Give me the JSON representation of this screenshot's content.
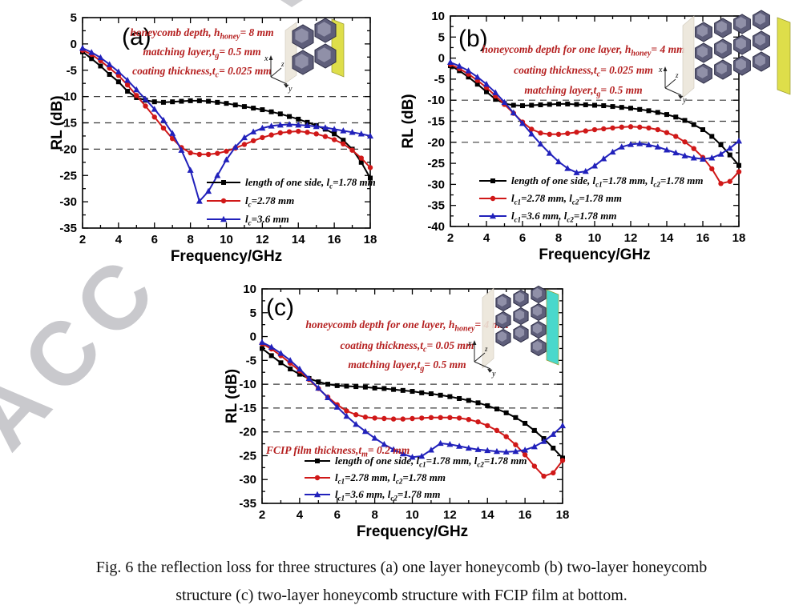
{
  "watermark": {
    "text": "ACC",
    "color": "#c9c9cd"
  },
  "caption": {
    "line1": "Fig. 6 the reflection loss for three structures (a) one layer honeycomb (b) two-layer honeycomb",
    "line2": "structure (c) two-layer honeycomb structure with FCIP film at bottom."
  },
  "colors": {
    "series_black": "#000000",
    "series_red": "#d01818",
    "series_blue": "#2121bb",
    "annotation_red": "#b52020",
    "dashed_line": "#3c3c3c",
    "axis": "#000000",
    "inset_back_yellow": "#dede4a",
    "inset_back_cyan": "#49d8cc"
  },
  "chart_common": {
    "x": [
      2,
      2.5,
      3,
      3.5,
      4,
      4.5,
      5,
      5.5,
      6,
      6.5,
      7,
      7.5,
      8,
      8.5,
      9,
      9.5,
      10,
      10.5,
      11,
      11.5,
      12,
      12.5,
      13,
      13.5,
      14,
      14.5,
      15,
      15.5,
      16,
      16.5,
      17,
      17.5,
      18
    ],
    "xlabel": "Frequency/GHz",
    "ylabel": "RL (dB)"
  },
  "chart_data": [
    {
      "type": "line",
      "panel_label": "(a)",
      "xlabel": "Frequency/GHz",
      "ylabel": "RL (dB)",
      "xlim": [
        2,
        18
      ],
      "ylim": [
        -35,
        5
      ],
      "xticks": [
        2,
        4,
        6,
        8,
        10,
        12,
        14,
        16,
        18
      ],
      "yticks": [
        5,
        0,
        -5,
        -10,
        -15,
        -20,
        -25,
        -30,
        -35
      ],
      "dashed_lines_y": [
        -10,
        -15,
        -20
      ],
      "grid": false,
      "legend_position": "inside lower right",
      "annotations": [
        "honeycomb depth, h_{honey}= 8 mm",
        "matching layer,t_{g}= 0.5 mm",
        "coating thickness,t_{c}= 0.025 mm"
      ],
      "series": [
        {
          "name": "length of one side, l_{c}=1.78 mm",
          "marker": "square",
          "color": "#000000",
          "values": [
            -1.5,
            -2.8,
            -4.2,
            -5.8,
            -7.2,
            -9.0,
            -10.2,
            -10.7,
            -11.0,
            -11.1,
            -11.0,
            -10.9,
            -10.8,
            -10.8,
            -10.9,
            -11.1,
            -11.3,
            -11.6,
            -11.9,
            -12.2,
            -12.5,
            -12.9,
            -13.3,
            -13.8,
            -14.3,
            -14.9,
            -15.5,
            -16.2,
            -17.1,
            -18.3,
            -20.0,
            -22.5,
            -25.5
          ]
        },
        {
          "name": "l_{c}=2.78 mm",
          "marker": "circle",
          "color": "#d01818",
          "values": [
            -1.2,
            -2.0,
            -3.2,
            -4.6,
            -6.0,
            -7.8,
            -9.8,
            -11.8,
            -13.9,
            -16.0,
            -18.0,
            -19.7,
            -20.7,
            -21.0,
            -21.0,
            -20.8,
            -20.4,
            -19.8,
            -19.1,
            -18.4,
            -17.8,
            -17.3,
            -16.9,
            -16.7,
            -16.6,
            -16.8,
            -17.1,
            -17.6,
            -18.2,
            -19.0,
            -20.2,
            -21.7,
            -23.5
          ]
        },
        {
          "name": "l_{c}=3.6 mm",
          "marker": "triangle",
          "color": "#2121bb",
          "values": [
            -0.8,
            -1.6,
            -2.6,
            -3.9,
            -5.3,
            -6.9,
            -8.7,
            -10.5,
            -12.4,
            -14.5,
            -17.0,
            -20.2,
            -24.0,
            -29.9,
            -28.0,
            -25.0,
            -22.0,
            -19.6,
            -17.8,
            -16.7,
            -16.0,
            -15.6,
            -15.4,
            -15.3,
            -15.4,
            -15.5,
            -15.7,
            -15.9,
            -16.2,
            -16.5,
            -16.8,
            -17.1,
            -17.5
          ]
        }
      ],
      "inset": {
        "back_plate_color": "#dede4a",
        "axis_triad": [
          "x",
          "z",
          "y"
        ]
      }
    },
    {
      "type": "line",
      "panel_label": "(b)",
      "xlabel": "Frequency/GHz",
      "ylabel": "RL (dB)",
      "xlim": [
        2,
        18
      ],
      "ylim": [
        -40,
        10
      ],
      "xticks": [
        2,
        4,
        6,
        8,
        10,
        12,
        14,
        16,
        18
      ],
      "yticks": [
        10,
        5,
        0,
        -5,
        -10,
        -15,
        -20,
        -25,
        -30,
        -35,
        -40
      ],
      "dashed_lines_y": [
        -10,
        -15,
        -20
      ],
      "grid": false,
      "legend_position": "inside lower left",
      "annotations": [
        "honeycomb depth for one layer, h_{honey}= 4 mm",
        "coating thickness,t_{c}= 0.025 mm",
        "matching layer,t_{g}= 0.5 mm"
      ],
      "series": [
        {
          "name": "length of one side, l_{c1}=1.78 mm, l_{c2}=1.78 mm",
          "marker": "square",
          "color": "#000000",
          "values": [
            -1.8,
            -3.0,
            -4.5,
            -6.2,
            -8.0,
            -9.8,
            -10.8,
            -11.2,
            -11.3,
            -11.2,
            -11.1,
            -11.0,
            -10.9,
            -10.9,
            -11.0,
            -11.1,
            -11.2,
            -11.3,
            -11.5,
            -11.7,
            -11.9,
            -12.2,
            -12.5,
            -12.9,
            -13.4,
            -14.0,
            -14.8,
            -15.8,
            -17.0,
            -18.6,
            -20.6,
            -23.0,
            -25.5
          ]
        },
        {
          "name": "l_{c1}=2.78 mm, l_{c2}=1.78 mm",
          "marker": "circle",
          "color": "#d01818",
          "values": [
            -1.5,
            -2.5,
            -3.8,
            -5.3,
            -7.0,
            -9.0,
            -11.0,
            -13.1,
            -15.2,
            -16.9,
            -17.8,
            -18.1,
            -18.1,
            -17.9,
            -17.6,
            -17.3,
            -17.0,
            -16.8,
            -16.6,
            -16.4,
            -16.3,
            -16.4,
            -16.6,
            -17.0,
            -17.7,
            -18.6,
            -19.9,
            -21.5,
            -23.6,
            -26.3,
            -29.8,
            -29.3,
            -27.0
          ]
        },
        {
          "name": "l_{c1}=3.6 mm, l_{c2}=1.78 mm",
          "marker": "triangle",
          "color": "#2121bb",
          "values": [
            -1.0,
            -1.9,
            -3.0,
            -4.5,
            -6.2,
            -8.2,
            -10.5,
            -13.0,
            -15.5,
            -18.0,
            -20.4,
            -22.6,
            -24.6,
            -26.2,
            -27.2,
            -26.9,
            -25.6,
            -23.9,
            -22.3,
            -21.1,
            -20.5,
            -20.3,
            -20.6,
            -21.1,
            -21.8,
            -22.5,
            -23.2,
            -23.7,
            -24.0,
            -23.7,
            -22.8,
            -21.4,
            -19.7
          ]
        }
      ],
      "inset": {
        "back_plate_color": "#dede4a",
        "axis_triad": [
          "x",
          "z",
          "y"
        ]
      }
    },
    {
      "type": "line",
      "panel_label": "(c)",
      "xlabel": "Frequency/GHz",
      "ylabel": "RL (dB)",
      "xlim": [
        2,
        18
      ],
      "ylim": [
        -35,
        10
      ],
      "xticks": [
        2,
        4,
        6,
        8,
        10,
        12,
        14,
        16,
        18
      ],
      "yticks": [
        10,
        5,
        0,
        -5,
        -10,
        -15,
        -20,
        -25,
        -30,
        -35
      ],
      "dashed_lines_y": [
        -10,
        -15,
        -20
      ],
      "grid": false,
      "legend_position": "inside lower left",
      "annotations": [
        "honeycomb depth for one layer, h_{honey}= 4 mm",
        "coating thickness,t_{c}= 0.05 mm",
        "matching layer,t_{g}= 0.5 mm"
      ],
      "extra_annotation": "FCIP film thickness,t_{m}= 0.2 mm",
      "series": [
        {
          "name": "length of one side, l_{c1}=1.78 mm, l_{c2}=1.78 mm",
          "marker": "square",
          "color": "#000000",
          "values": [
            -2.5,
            -4.0,
            -5.5,
            -6.8,
            -7.9,
            -8.8,
            -9.5,
            -10.0,
            -10.3,
            -10.4,
            -10.5,
            -10.6,
            -10.8,
            -10.9,
            -11.1,
            -11.3,
            -11.5,
            -11.8,
            -12.0,
            -12.3,
            -12.6,
            -13.0,
            -13.4,
            -13.9,
            -14.5,
            -15.2,
            -16.0,
            -17.0,
            -18.2,
            -19.7,
            -21.4,
            -23.4,
            -25.5
          ]
        },
        {
          "name": "l_{c1}=2.78 mm, l_{c2}=1.78 mm",
          "marker": "circle",
          "color": "#d01818",
          "values": [
            -1.5,
            -2.6,
            -4.0,
            -5.6,
            -7.2,
            -9.0,
            -10.9,
            -12.7,
            -14.3,
            -15.6,
            -16.4,
            -16.9,
            -17.1,
            -17.2,
            -17.3,
            -17.3,
            -17.2,
            -17.1,
            -17.0,
            -17.0,
            -17.0,
            -17.1,
            -17.4,
            -17.9,
            -18.7,
            -19.7,
            -21.0,
            -22.7,
            -24.8,
            -27.2,
            -29.3,
            -28.6,
            -26.0
          ]
        },
        {
          "name": "l_{c1}=3.6 mm, l_{c2}=1.78 mm",
          "marker": "triangle",
          "color": "#2121bb",
          "values": [
            -1.2,
            -2.2,
            -3.5,
            -5.0,
            -6.8,
            -8.8,
            -10.8,
            -12.8,
            -14.8,
            -16.7,
            -18.4,
            -19.9,
            -21.3,
            -22.6,
            -23.7,
            -24.6,
            -25.3,
            -25.1,
            -23.8,
            -22.4,
            -22.6,
            -23.0,
            -23.4,
            -23.7,
            -23.9,
            -24.1,
            -24.2,
            -24.1,
            -23.8,
            -23.1,
            -22.0,
            -20.5,
            -18.7
          ]
        }
      ],
      "inset": {
        "back_plate_color": "#49d8cc",
        "axis_triad": [
          "x",
          "z",
          "y"
        ]
      }
    }
  ]
}
